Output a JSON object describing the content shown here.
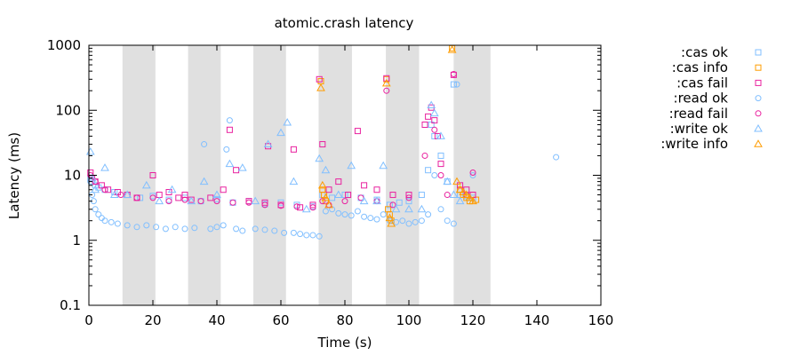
{
  "chart_data": {
    "type": "scatter",
    "title": "atomic.crash latency",
    "xlabel": "Time (s)",
    "ylabel": "Latency (ms)",
    "xlim": [
      0,
      160
    ],
    "ylim": [
      0.1,
      1000
    ],
    "yscale": "log",
    "xticks": [
      0,
      20,
      40,
      60,
      80,
      100,
      120,
      140,
      160
    ],
    "yticks": [
      {
        "value": 0.1,
        "label": "0.1"
      },
      {
        "value": 1,
        "label": "1"
      },
      {
        "value": 10,
        "label": "10"
      },
      {
        "value": 100,
        "label": "100"
      },
      {
        "value": 1000,
        "label": "1000"
      }
    ],
    "grid": false,
    "legend_position": "right",
    "nemesis_intervals": [
      [
        10.5,
        20.8
      ],
      [
        31.0,
        41.2
      ],
      [
        51.4,
        61.6
      ],
      [
        71.8,
        82.2
      ],
      [
        92.8,
        103.2
      ],
      [
        114.0,
        125.5
      ]
    ],
    "nemesis_color": "#e0e0e0",
    "series": [
      {
        "name": ":cas ok",
        "marker": "square",
        "color": "#81bfff",
        "points": [
          [
            0.5,
            9
          ],
          [
            1,
            8
          ],
          [
            2,
            7
          ],
          [
            3,
            6.5
          ],
          [
            5,
            6
          ],
          [
            8,
            5.5
          ],
          [
            12,
            5
          ],
          [
            16,
            4.5
          ],
          [
            20,
            4.8
          ],
          [
            25,
            4.2
          ],
          [
            30,
            4.5
          ],
          [
            35,
            4
          ],
          [
            40,
            4.3
          ],
          [
            45,
            3.8
          ],
          [
            50,
            4
          ],
          [
            55,
            3.6
          ],
          [
            60,
            3.8
          ],
          [
            65,
            3.5
          ],
          [
            70,
            3.3
          ],
          [
            73,
            5
          ],
          [
            76,
            4.5
          ],
          [
            80,
            5
          ],
          [
            85,
            4.5
          ],
          [
            90,
            4.2
          ],
          [
            94,
            3.5
          ],
          [
            97,
            3.8
          ],
          [
            100,
            4
          ],
          [
            104,
            5
          ],
          [
            106,
            12
          ],
          [
            107,
            60
          ],
          [
            108,
            40
          ],
          [
            110,
            20
          ],
          [
            112,
            8
          ],
          [
            114,
            250
          ],
          [
            116,
            5
          ],
          [
            118,
            4.8
          ],
          [
            120,
            4.5
          ]
        ]
      },
      {
        "name": ":cas info",
        "marker": "square",
        "color": "#ff9c00",
        "points": [
          [
            72.5,
            280
          ],
          [
            73,
            6
          ],
          [
            73.5,
            5
          ],
          [
            74,
            4
          ],
          [
            93,
            300
          ],
          [
            93.5,
            3
          ],
          [
            94,
            2.5
          ],
          [
            94.5,
            2
          ],
          [
            113.5,
            900
          ],
          [
            116,
            6
          ],
          [
            117,
            5
          ],
          [
            118,
            4.5
          ],
          [
            119,
            4
          ],
          [
            120,
            5
          ],
          [
            121,
            4.2
          ]
        ]
      },
      {
        "name": ":cas fail",
        "marker": "square",
        "color": "#e9219f",
        "points": [
          [
            0.5,
            11
          ],
          [
            1,
            9
          ],
          [
            2,
            8
          ],
          [
            4,
            7
          ],
          [
            6,
            6
          ],
          [
            9,
            5.5
          ],
          [
            12,
            5
          ],
          [
            15,
            4.5
          ],
          [
            20,
            10
          ],
          [
            22,
            5
          ],
          [
            25,
            5.5
          ],
          [
            28,
            4.5
          ],
          [
            30,
            5
          ],
          [
            32,
            4.2
          ],
          [
            38,
            4.5
          ],
          [
            42,
            6
          ],
          [
            44,
            50
          ],
          [
            46,
            12
          ],
          [
            50,
            4
          ],
          [
            55,
            3.8
          ],
          [
            56,
            28
          ],
          [
            60,
            3.5
          ],
          [
            64,
            25
          ],
          [
            66,
            3.2
          ],
          [
            70,
            3.5
          ],
          [
            72,
            300
          ],
          [
            73,
            30
          ],
          [
            75,
            6
          ],
          [
            78,
            8
          ],
          [
            81,
            5
          ],
          [
            84,
            48
          ],
          [
            86,
            7
          ],
          [
            90,
            6
          ],
          [
            93,
            310
          ],
          [
            95,
            5
          ],
          [
            100,
            5
          ],
          [
            105,
            60
          ],
          [
            106,
            80
          ],
          [
            107,
            110
          ],
          [
            108,
            70
          ],
          [
            109,
            40
          ],
          [
            110,
            15
          ],
          [
            114,
            350
          ],
          [
            116,
            7
          ],
          [
            118,
            6
          ],
          [
            120,
            5
          ]
        ]
      },
      {
        "name": ":read ok",
        "marker": "circle",
        "color": "#81bfff",
        "points": [
          [
            0.5,
            8
          ],
          [
            1,
            5
          ],
          [
            1.5,
            4
          ],
          [
            2,
            3
          ],
          [
            3,
            2.5
          ],
          [
            4,
            2.2
          ],
          [
            5,
            2
          ],
          [
            7,
            1.9
          ],
          [
            9,
            1.8
          ],
          [
            12,
            1.7
          ],
          [
            15,
            1.6
          ],
          [
            18,
            1.7
          ],
          [
            21,
            1.6
          ],
          [
            24,
            1.5
          ],
          [
            27,
            1.6
          ],
          [
            30,
            1.5
          ],
          [
            33,
            1.55
          ],
          [
            36,
            30
          ],
          [
            38,
            1.5
          ],
          [
            40,
            1.6
          ],
          [
            42,
            1.7
          ],
          [
            43,
            25
          ],
          [
            44,
            70
          ],
          [
            46,
            1.5
          ],
          [
            48,
            1.4
          ],
          [
            52,
            1.5
          ],
          [
            55,
            1.45
          ],
          [
            58,
            1.4
          ],
          [
            61,
            1.3
          ],
          [
            64,
            1.3
          ],
          [
            66,
            1.25
          ],
          [
            68,
            1.2
          ],
          [
            70,
            1.2
          ],
          [
            72,
            1.15
          ],
          [
            74,
            2.8
          ],
          [
            76,
            3
          ],
          [
            78,
            2.6
          ],
          [
            80,
            2.5
          ],
          [
            82,
            2.4
          ],
          [
            84,
            2.8
          ],
          [
            86,
            2.3
          ],
          [
            88,
            2.2
          ],
          [
            90,
            2.1
          ],
          [
            92,
            2.5
          ],
          [
            94,
            2
          ],
          [
            96,
            1.9
          ],
          [
            98,
            2
          ],
          [
            100,
            1.8
          ],
          [
            102,
            1.9
          ],
          [
            104,
            2
          ],
          [
            106,
            2.5
          ],
          [
            108,
            10
          ],
          [
            110,
            3
          ],
          [
            112,
            2
          ],
          [
            114,
            1.8
          ],
          [
            115,
            250
          ],
          [
            120,
            10
          ],
          [
            146,
            19
          ]
        ]
      },
      {
        "name": ":read fail",
        "marker": "circle",
        "color": "#e9219f",
        "points": [
          [
            0.5,
            10
          ],
          [
            2,
            8
          ],
          [
            5,
            6
          ],
          [
            10,
            5
          ],
          [
            15,
            4.5
          ],
          [
            20,
            4.5
          ],
          [
            25,
            4
          ],
          [
            30,
            4.2
          ],
          [
            35,
            4
          ],
          [
            40,
            4
          ],
          [
            45,
            3.8
          ],
          [
            50,
            3.8
          ],
          [
            55,
            3.5
          ],
          [
            60,
            3.4
          ],
          [
            65,
            3.3
          ],
          [
            70,
            3.2
          ],
          [
            73,
            4
          ],
          [
            75,
            3.5
          ],
          [
            80,
            4
          ],
          [
            85,
            4.5
          ],
          [
            90,
            4
          ],
          [
            93,
            200
          ],
          [
            95,
            3.5
          ],
          [
            100,
            4.5
          ],
          [
            105,
            20
          ],
          [
            108,
            50
          ],
          [
            110,
            10
          ],
          [
            112,
            5
          ],
          [
            114,
            360
          ],
          [
            118,
            5
          ],
          [
            120,
            11
          ]
        ]
      },
      {
        "name": ":write ok",
        "marker": "triangle",
        "color": "#81bfff",
        "points": [
          [
            0.5,
            23
          ],
          [
            1,
            9
          ],
          [
            2,
            6
          ],
          [
            5,
            13
          ],
          [
            8,
            5
          ],
          [
            12,
            5
          ],
          [
            18,
            7
          ],
          [
            22,
            4
          ],
          [
            26,
            6
          ],
          [
            32,
            4
          ],
          [
            36,
            8
          ],
          [
            40,
            5
          ],
          [
            44,
            15
          ],
          [
            48,
            13
          ],
          [
            52,
            4
          ],
          [
            56,
            30
          ],
          [
            60,
            45
          ],
          [
            62,
            65
          ],
          [
            64,
            8
          ],
          [
            68,
            3
          ],
          [
            72,
            18
          ],
          [
            74,
            12
          ],
          [
            78,
            5
          ],
          [
            82,
            14
          ],
          [
            86,
            4
          ],
          [
            90,
            4
          ],
          [
            92,
            14
          ],
          [
            96,
            3
          ],
          [
            100,
            3
          ],
          [
            104,
            3
          ],
          [
            107,
            120
          ],
          [
            108,
            90
          ],
          [
            110,
            40
          ],
          [
            112,
            8
          ],
          [
            114,
            5
          ],
          [
            116,
            4
          ],
          [
            119,
            4.5
          ]
        ]
      },
      {
        "name": ":write info",
        "marker": "triangle",
        "color": "#ff9c00",
        "points": [
          [
            72.5,
            220
          ],
          [
            73,
            7
          ],
          [
            74,
            4.5
          ],
          [
            75,
            3.5
          ],
          [
            93,
            260
          ],
          [
            94,
            2.2
          ],
          [
            94.5,
            1.8
          ],
          [
            113.5,
            850
          ],
          [
            115,
            8
          ],
          [
            116,
            6
          ],
          [
            117,
            5.5
          ],
          [
            118,
            5
          ],
          [
            119,
            4.5
          ],
          [
            120,
            4
          ]
        ]
      }
    ]
  }
}
